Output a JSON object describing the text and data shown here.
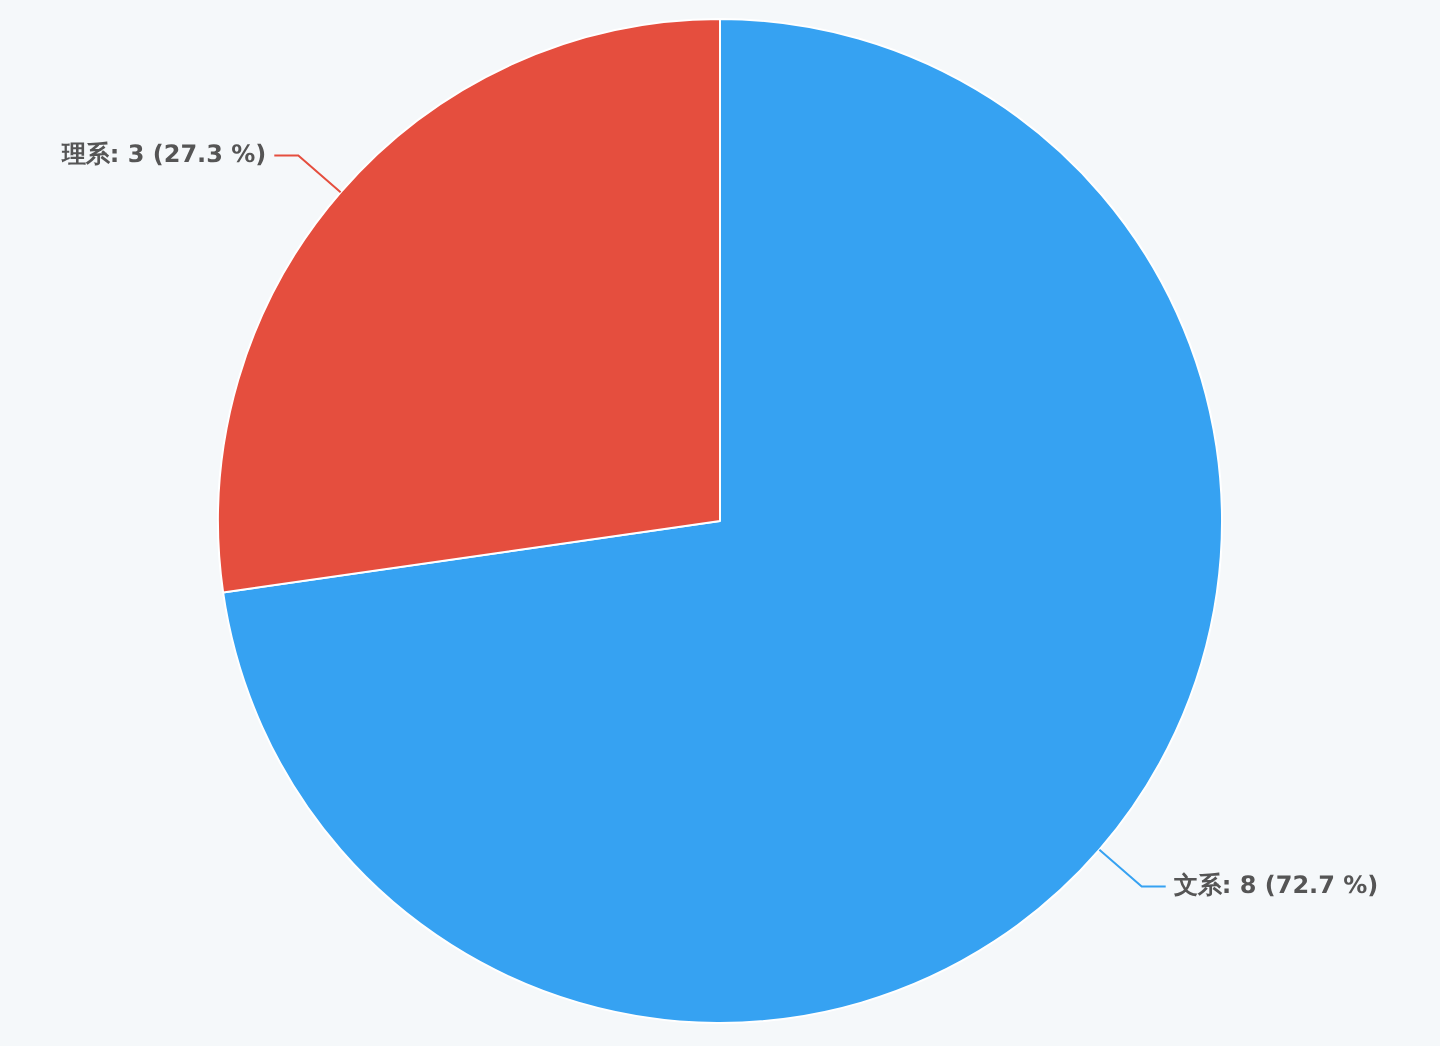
{
  "chart_data": {
    "type": "pie",
    "categories": [
      "文系",
      "理系"
    ],
    "values": [
      8,
      3
    ],
    "colors": [
      "#36a2f2",
      "#e54e3e"
    ],
    "value_labels": [
      "8 (72.7 %)",
      "3 (27.3 %)"
    ],
    "legend": false
  }
}
